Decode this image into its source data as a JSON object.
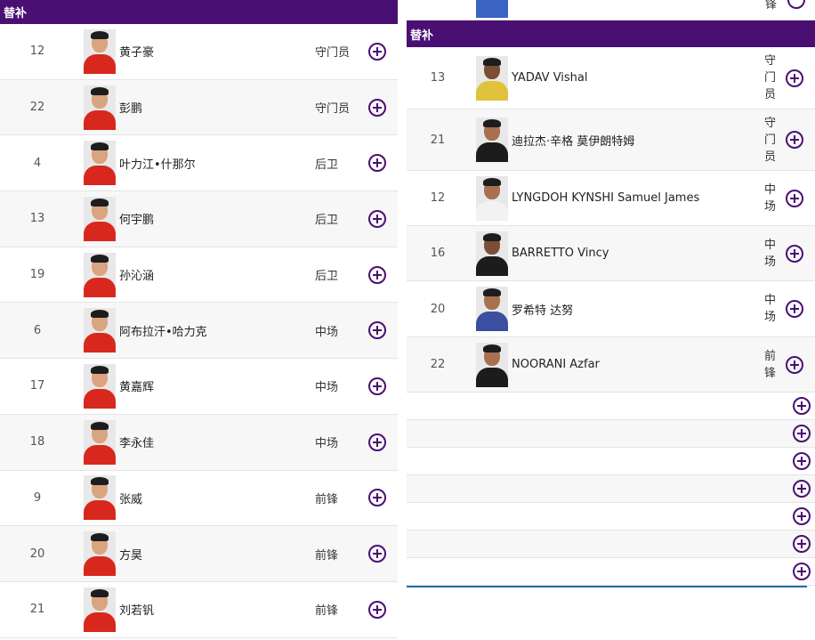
{
  "left": {
    "header": "替补",
    "players": [
      {
        "number": "12",
        "name": "黄子豪",
        "position": "守门员"
      },
      {
        "number": "22",
        "name": "彭鹏",
        "position": "守门员"
      },
      {
        "number": "4",
        "name": "叶力江•什那尔",
        "position": "后卫"
      },
      {
        "number": "13",
        "name": "何宇鹏",
        "position": "后卫"
      },
      {
        "number": "19",
        "name": "孙沁涵",
        "position": "后卫"
      },
      {
        "number": "6",
        "name": "阿布拉汗•哈力克",
        "position": "中场"
      },
      {
        "number": "17",
        "name": "黄嘉辉",
        "position": "中场"
      },
      {
        "number": "18",
        "name": "李永佳",
        "position": "中场"
      },
      {
        "number": "9",
        "name": "张威",
        "position": "前锋"
      },
      {
        "number": "20",
        "name": "方昊",
        "position": "前锋"
      },
      {
        "number": "21",
        "name": "刘若钒",
        "position": "前锋"
      }
    ]
  },
  "right": {
    "top_stub_position": "锋",
    "header": "替补",
    "players": [
      {
        "number": "13",
        "name": "YADAV Vishal",
        "position": "守门员"
      },
      {
        "number": "21",
        "name": "迪拉杰·辛格 莫伊朗特姆",
        "position": "守门员"
      },
      {
        "number": "12",
        "name": "LYNGDOH KYNSHI Samuel James",
        "position": "中场"
      },
      {
        "number": "16",
        "name": "BARRETTO Vincy",
        "position": "中场"
      },
      {
        "number": "20",
        "name": "罗希特 达努",
        "position": "中场"
      },
      {
        "number": "22",
        "name": "NOORANI Azfar",
        "position": "前锋"
      }
    ],
    "empty_slots": 7
  },
  "colors": {
    "header_bg": "#4a0f73",
    "accent": "#4a0f73",
    "divider": "#1f6fa8"
  },
  "icons": {
    "add": "plus-circle-icon",
    "avatar": "player-photo"
  }
}
